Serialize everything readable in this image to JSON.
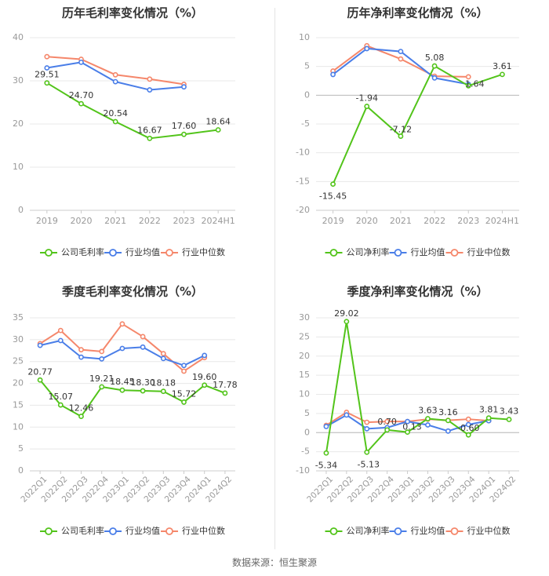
{
  "source": "数据来源：恒生聚源",
  "colors": {
    "company": "#52c41a",
    "average": "#4a7ee8",
    "median": "#f5876b",
    "grid": "#e8e8e8",
    "tick": "#999999"
  },
  "charts": [
    {
      "id": "annual-gross",
      "title": "历年毛利率变化情况（%）",
      "categories": [
        "2019",
        "2020",
        "2021",
        "2022",
        "2023",
        "2024H1"
      ],
      "rotate_labels": false,
      "ylim": [
        0,
        40
      ],
      "yticks": [
        0,
        10,
        20,
        30,
        40
      ],
      "legend": [
        "公司毛利率",
        "行业均值",
        "行业中位数"
      ],
      "series": [
        {
          "name": "公司毛利率",
          "key": "company",
          "values": [
            29.51,
            24.7,
            20.54,
            16.67,
            17.6,
            18.64
          ],
          "labels": [
            "29.51",
            "24.70",
            "20.54",
            "16.67",
            "17.60",
            "18.64"
          ]
        },
        {
          "name": "行业均值",
          "key": "average",
          "values": [
            33.0,
            34.3,
            29.8,
            27.9,
            28.6,
            null
          ]
        },
        {
          "name": "行业中位数",
          "key": "median",
          "values": [
            35.6,
            35.0,
            31.4,
            30.4,
            29.2,
            null
          ]
        }
      ]
    },
    {
      "id": "annual-net",
      "title": "历年净利率变化情况（%）",
      "categories": [
        "2019",
        "2020",
        "2021",
        "2022",
        "2023",
        "2024H1"
      ],
      "rotate_labels": false,
      "ylim": [
        -20,
        10
      ],
      "yticks": [
        -20,
        -15,
        -10,
        -5,
        0,
        5,
        10
      ],
      "legend": [
        "公司净利率",
        "行业均值",
        "行业中位数"
      ],
      "series": [
        {
          "name": "公司净利率",
          "key": "company",
          "values": [
            -15.45,
            -1.94,
            -7.12,
            5.08,
            1.64,
            3.61
          ],
          "labels": [
            "-15.45",
            "-1.94",
            "-7.12",
            "5.08",
            "1.64",
            "3.61"
          ]
        },
        {
          "name": "行业均值",
          "key": "average",
          "values": [
            3.6,
            8.1,
            7.6,
            3.0,
            1.9,
            null
          ]
        },
        {
          "name": "行业中位数",
          "key": "median",
          "values": [
            4.2,
            8.6,
            6.3,
            3.3,
            3.2,
            null
          ]
        }
      ]
    },
    {
      "id": "quarterly-gross",
      "title": "季度毛利率变化情况（%）",
      "categories": [
        "2022Q1",
        "2022Q2",
        "2022Q3",
        "2022Q4",
        "2023Q1",
        "2023Q2",
        "2023Q3",
        "2023Q4",
        "2024Q1",
        "2024Q2"
      ],
      "rotate_labels": true,
      "ylim": [
        0,
        35
      ],
      "yticks": [
        0,
        5,
        10,
        15,
        20,
        25,
        30,
        35
      ],
      "legend": [
        "公司毛利率",
        "行业均值",
        "行业中位数"
      ],
      "series": [
        {
          "name": "公司毛利率",
          "key": "company",
          "values": [
            20.77,
            15.07,
            12.46,
            19.21,
            18.45,
            18.3,
            18.18,
            15.72,
            19.6,
            17.78
          ],
          "labels": [
            "20.77",
            "15.07",
            "12.46",
            "19.21",
            "18.45",
            "18.30",
            "18.18",
            "15.72",
            "19.60",
            "17.78"
          ]
        },
        {
          "name": "行业均值",
          "key": "average",
          "values": [
            28.7,
            29.8,
            26.0,
            25.6,
            28.0,
            28.3,
            25.7,
            24.1,
            26.4,
            null
          ]
        },
        {
          "name": "行业中位数",
          "key": "median",
          "values": [
            29.1,
            32.1,
            27.7,
            27.3,
            33.6,
            30.7,
            26.8,
            22.8,
            25.9,
            null
          ]
        }
      ]
    },
    {
      "id": "quarterly-net",
      "title": "季度净利率变化情况（%）",
      "categories": [
        "2022Q1",
        "2022Q2",
        "2022Q3",
        "2022Q4",
        "2023Q1",
        "2023Q2",
        "2023Q3",
        "2023Q4",
        "2024Q1",
        "2024Q2"
      ],
      "rotate_labels": true,
      "ylim": [
        -10,
        30
      ],
      "yticks": [
        -10,
        -5,
        0,
        5,
        10,
        15,
        20,
        25,
        30
      ],
      "legend": [
        "公司净利率",
        "行业均值",
        "行业中位数"
      ],
      "series": [
        {
          "name": "公司净利率",
          "key": "company",
          "values": [
            -5.34,
            29.02,
            -5.13,
            0.7,
            0.13,
            3.63,
            3.16,
            -0.6,
            3.81,
            3.43
          ],
          "labels": [
            "-5.34",
            "29.02",
            "-5.13",
            "0.70",
            "0.13",
            "3.63",
            "3.16",
            "-0.60",
            "3.81",
            "3.43"
          ]
        },
        {
          "name": "行业均值",
          "key": "average",
          "values": [
            1.6,
            4.6,
            1.0,
            1.3,
            2.9,
            2.0,
            0.4,
            2.1,
            3.1,
            null
          ]
        },
        {
          "name": "行业中位数",
          "key": "median",
          "values": [
            1.9,
            5.3,
            2.7,
            2.9,
            2.9,
            3.5,
            3.2,
            3.5,
            3.1,
            null
          ]
        }
      ]
    }
  ]
}
